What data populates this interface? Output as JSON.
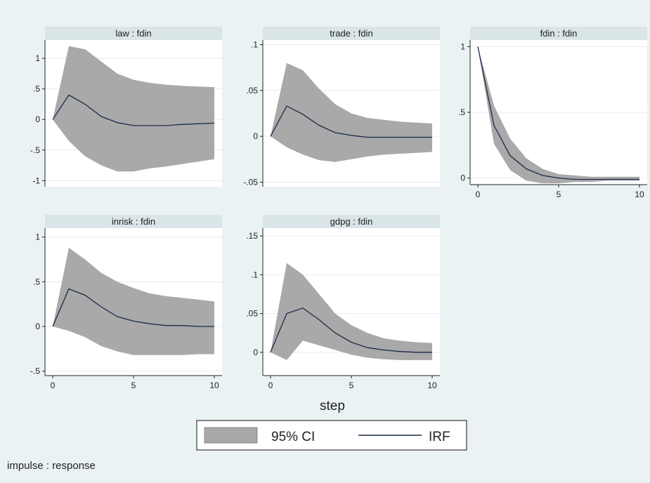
{
  "figure": {
    "xlabel": "step",
    "note": "impulse : response",
    "legend": {
      "ci_label": "95% CI",
      "irf_label": "IRF",
      "ci_color": "#a9a9a9",
      "line_color": "#1a2a4a"
    },
    "colors": {
      "background": "#eaf2f3",
      "plot_bg": "#ffffff",
      "header_bg": "#d9e5e7",
      "grid": "#e6ecee"
    }
  },
  "chart_data": [
    {
      "type": "area",
      "title": "law : fdin",
      "x": [
        0,
        1,
        2,
        3,
        4,
        5,
        6,
        7,
        8,
        9,
        10
      ],
      "y": [
        0,
        0.4,
        0.25,
        0.05,
        -0.05,
        -0.1,
        -0.1,
        -0.1,
        -0.08,
        -0.07,
        -0.06
      ],
      "lower": [
        0,
        -0.35,
        -0.6,
        -0.75,
        -0.85,
        -0.85,
        -0.8,
        -0.77,
        -0.73,
        -0.69,
        -0.65
      ],
      "upper": [
        0,
        1.2,
        1.15,
        0.95,
        0.75,
        0.65,
        0.6,
        0.57,
        0.55,
        0.54,
        0.53
      ],
      "ylim": [
        -1.1,
        1.3
      ],
      "yticks": [
        1,
        0.5,
        0,
        -0.5,
        -1
      ],
      "yticklabels": [
        "1",
        ".5",
        "0",
        "-.5",
        "-1"
      ],
      "xticks": [],
      "xticklabels": []
    },
    {
      "type": "area",
      "title": "trade : fdin",
      "x": [
        0,
        1,
        2,
        3,
        4,
        5,
        6,
        7,
        8,
        9,
        10
      ],
      "y": [
        0,
        0.033,
        0.024,
        0.012,
        0.004,
        0.001,
        -0.001,
        -0.001,
        -0.001,
        -0.001,
        -0.001
      ],
      "lower": [
        0,
        -0.012,
        -0.02,
        -0.026,
        -0.028,
        -0.025,
        -0.022,
        -0.02,
        -0.019,
        -0.018,
        -0.017
      ],
      "upper": [
        0,
        0.08,
        0.072,
        0.052,
        0.035,
        0.025,
        0.02,
        0.018,
        0.016,
        0.015,
        0.014
      ],
      "ylim": [
        -0.055,
        0.105
      ],
      "yticks": [
        0.1,
        0.05,
        0,
        -0.05
      ],
      "yticklabels": [
        ".1",
        ".05",
        "0",
        "-.05"
      ],
      "xticks": [],
      "xticklabels": []
    },
    {
      "type": "area",
      "title": "fdin : fdin",
      "x": [
        0,
        1,
        2,
        3,
        4,
        5,
        6,
        7,
        8,
        9,
        10
      ],
      "y": [
        1,
        0.4,
        0.17,
        0.07,
        0.02,
        0.0,
        -0.01,
        -0.01,
        -0.01,
        -0.01,
        -0.01
      ],
      "lower": [
        1,
        0.26,
        0.06,
        -0.02,
        -0.04,
        -0.04,
        -0.03,
        -0.03,
        -0.02,
        -0.02,
        -0.02
      ],
      "upper": [
        1,
        0.55,
        0.3,
        0.15,
        0.07,
        0.03,
        0.02,
        0.01,
        0.01,
        0.01,
        0.01
      ],
      "ylim": [
        -0.05,
        1.05
      ],
      "yticks": [
        1,
        0.5,
        0
      ],
      "yticklabels": [
        "1",
        ".5",
        "0"
      ],
      "xticks": [
        0,
        5,
        10
      ],
      "xticklabels": [
        "0",
        "5",
        "10"
      ]
    },
    {
      "type": "area",
      "title": "inrisk : fdin",
      "x": [
        0,
        1,
        2,
        3,
        4,
        5,
        6,
        7,
        8,
        9,
        10
      ],
      "y": [
        0,
        0.42,
        0.35,
        0.22,
        0.11,
        0.06,
        0.03,
        0.01,
        0.01,
        0.0,
        0.0
      ],
      "lower": [
        0,
        -0.05,
        -0.12,
        -0.22,
        -0.28,
        -0.32,
        -0.32,
        -0.32,
        -0.32,
        -0.31,
        -0.31
      ],
      "upper": [
        0,
        0.88,
        0.75,
        0.6,
        0.5,
        0.43,
        0.37,
        0.34,
        0.32,
        0.3,
        0.28
      ],
      "ylim": [
        -0.55,
        1.1
      ],
      "yticks": [
        1,
        0.5,
        0,
        -0.5
      ],
      "yticklabels": [
        "1",
        ".5",
        "0",
        "-.5"
      ],
      "xticks": [
        0,
        5,
        10
      ],
      "xticklabels": [
        "0",
        "5",
        "10"
      ]
    },
    {
      "type": "area",
      "title": "gdpg : fdin",
      "x": [
        0,
        1,
        2,
        3,
        4,
        5,
        6,
        7,
        8,
        9,
        10
      ],
      "y": [
        0,
        0.05,
        0.057,
        0.042,
        0.025,
        0.013,
        0.006,
        0.003,
        0.001,
        0.0,
        0.0
      ],
      "lower": [
        0,
        -0.01,
        0.015,
        0.009,
        0.003,
        -0.003,
        -0.007,
        -0.009,
        -0.01,
        -0.01,
        -0.01
      ],
      "upper": [
        0,
        0.115,
        0.1,
        0.075,
        0.05,
        0.035,
        0.025,
        0.018,
        0.015,
        0.013,
        0.012
      ],
      "ylim": [
        -0.03,
        0.16
      ],
      "yticks": [
        0.15,
        0.1,
        0.05,
        0
      ],
      "yticklabels": [
        ".15",
        ".1",
        ".05",
        "0"
      ],
      "xticks": [
        0,
        5,
        10
      ],
      "xticklabels": [
        "0",
        "5",
        "10"
      ]
    }
  ]
}
